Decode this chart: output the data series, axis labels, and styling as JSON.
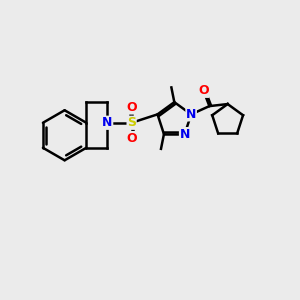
{
  "background_color": "#ebebeb",
  "atom_colors": {
    "N": "#0000ee",
    "O": "#ff0000",
    "S": "#cccc00",
    "C": "#000000"
  },
  "bond_color": "#000000",
  "bond_width": 1.8,
  "fig_w": 3.0,
  "fig_h": 3.0,
  "dpi": 100,
  "xlim": [
    0,
    10
  ],
  "ylim": [
    0,
    10
  ]
}
